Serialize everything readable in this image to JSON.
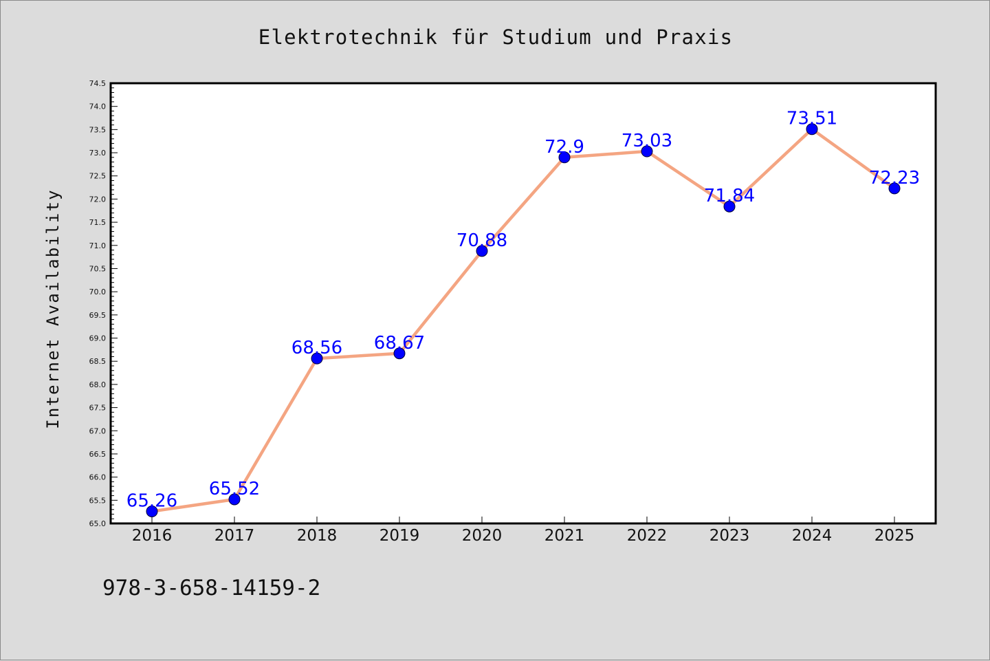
{
  "chart_data": {
    "type": "line",
    "title": "Elektrotechnik für Studium und Praxis",
    "xlabel": "",
    "ylabel": "Internet Availability",
    "categories": [
      "2016",
      "2017",
      "2018",
      "2019",
      "2020",
      "2021",
      "2022",
      "2023",
      "2024",
      "2025"
    ],
    "series": [
      {
        "values": [
          65.26,
          65.52,
          68.56,
          68.67,
          70.88,
          72.9,
          73.03,
          71.84,
          73.51,
          72.23
        ],
        "data_labels": [
          "65.26",
          "65.52",
          "68.56",
          "68.67",
          "70.88",
          "72.9",
          "73.03",
          "71.84",
          "73.51",
          "72.23"
        ],
        "line_color": "#f4a582",
        "marker_color": "#0000ff"
      }
    ],
    "ylim": [
      65.0,
      74.5
    ],
    "yticks": [
      "65.0",
      "65.5",
      "66.0",
      "66.5",
      "67.0",
      "67.5",
      "68.0",
      "68.5",
      "69.0",
      "69.5",
      "70.0",
      "70.5",
      "71.0",
      "71.5",
      "72.0",
      "72.5",
      "73.0",
      "73.5",
      "74.0",
      "74.5"
    ],
    "grid": false,
    "label_color": "#0000ff"
  },
  "footer": {
    "isbn": "978-3-658-14159-2"
  }
}
